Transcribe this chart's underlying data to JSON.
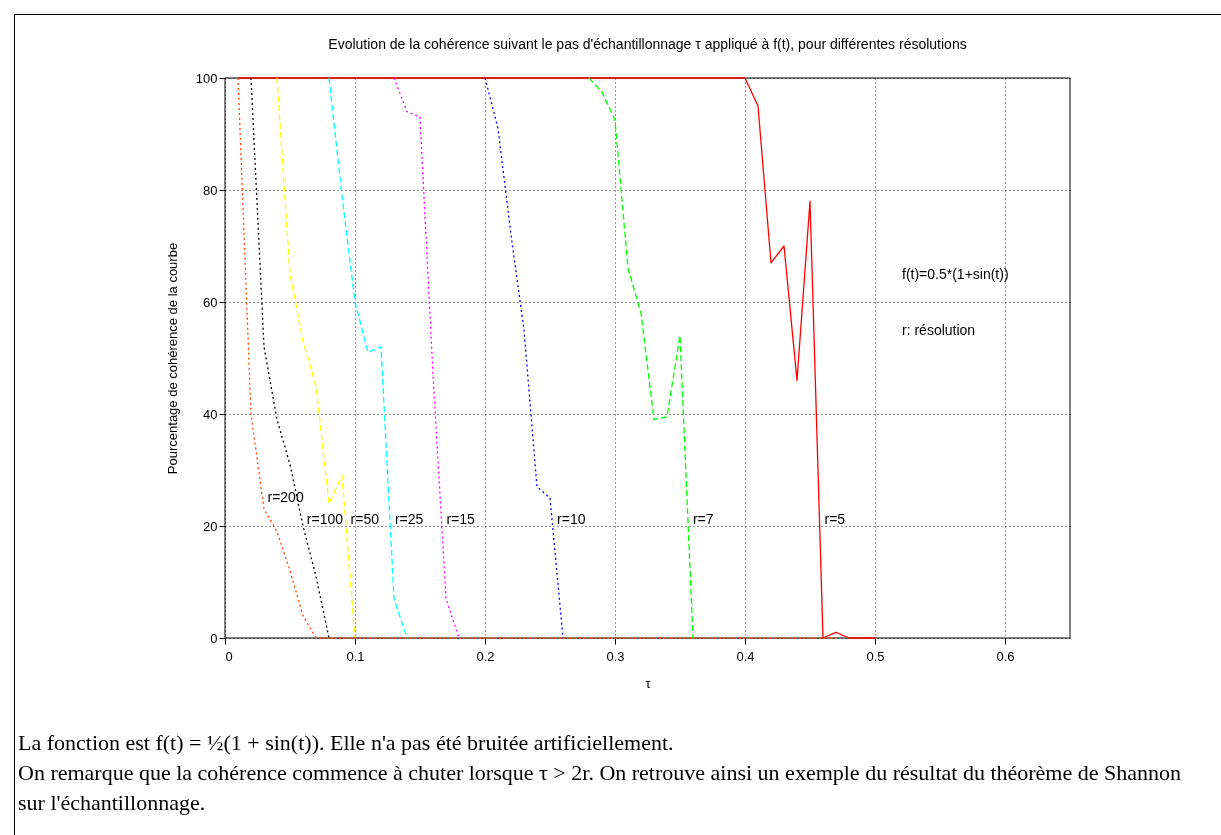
{
  "chart_data": {
    "type": "line",
    "title": "Evolution de la cohérence suivant le pas d'échantillonnage τ appliqué à f(t), pour différentes résolutions",
    "xlabel": "τ",
    "ylabel": "Pourcentage de cohérence de la courbe",
    "x": [
      0.01,
      0.02,
      0.03,
      0.04,
      0.05,
      0.06,
      0.07,
      0.08,
      0.09,
      0.1,
      0.11,
      0.12,
      0.13,
      0.14,
      0.15,
      0.16,
      0.17,
      0.18,
      0.19,
      0.2,
      0.21,
      0.22,
      0.23,
      0.24,
      0.25,
      0.26,
      0.27,
      0.28,
      0.29,
      0.3,
      0.31,
      0.32,
      0.33,
      0.34,
      0.35,
      0.36,
      0.37,
      0.38,
      0.39,
      0.4,
      0.41,
      0.42,
      0.43,
      0.44,
      0.45,
      0.46,
      0.47,
      0.48,
      0.49,
      0.5
    ],
    "series": [
      {
        "name": "r=5",
        "color": "#ff0000",
        "line_style": "solid",
        "values": [
          100,
          100,
          100,
          100,
          100,
          100,
          100,
          100,
          100,
          100,
          100,
          100,
          100,
          100,
          100,
          100,
          100,
          100,
          100,
          100,
          100,
          100,
          100,
          100,
          100,
          100,
          100,
          100,
          100,
          100,
          100,
          100,
          100,
          100,
          100,
          100,
          100,
          100,
          100,
          100,
          95,
          67,
          70,
          46,
          78,
          0,
          1,
          0,
          0,
          0
        ]
      },
      {
        "name": "r=7",
        "color": "#00ff00",
        "line_style": "dashed",
        "values": [
          null,
          null,
          null,
          null,
          null,
          null,
          null,
          null,
          null,
          null,
          null,
          null,
          null,
          null,
          null,
          null,
          null,
          null,
          null,
          null,
          null,
          null,
          null,
          null,
          null,
          null,
          null,
          100,
          97.5,
          92.5,
          66,
          58,
          39,
          39.5,
          54,
          0,
          null,
          null,
          null,
          null,
          null,
          null,
          null,
          null,
          null,
          null,
          null,
          null,
          null,
          null
        ]
      },
      {
        "name": "r=10",
        "color": "#0000ff",
        "line_style": "dotted",
        "values": [
          null,
          null,
          null,
          null,
          null,
          null,
          null,
          null,
          null,
          null,
          null,
          null,
          null,
          null,
          null,
          null,
          null,
          null,
          null,
          100,
          91,
          72,
          55,
          27,
          25,
          0,
          null,
          null,
          null,
          null,
          null,
          null,
          null,
          null,
          null,
          null,
          null,
          null,
          null,
          null,
          null,
          null,
          null,
          null,
          null,
          null,
          null,
          null,
          null,
          null
        ]
      },
      {
        "name": "r=15",
        "color": "#ff00ff",
        "line_style": "dotted",
        "values": [
          null,
          null,
          null,
          null,
          null,
          null,
          null,
          null,
          null,
          null,
          null,
          null,
          100,
          94,
          93,
          47,
          7,
          0,
          null,
          null,
          null,
          null,
          null,
          null,
          null,
          null,
          null,
          null,
          null,
          null,
          null,
          null,
          null,
          null,
          null,
          null,
          null,
          null,
          null,
          null,
          null,
          null,
          null,
          null,
          null,
          null,
          null,
          null,
          null,
          null
        ]
      },
      {
        "name": "r=25",
        "color": "#00ffff",
        "line_style": "dashed",
        "values": [
          null,
          null,
          null,
          null,
          null,
          null,
          null,
          100,
          79,
          60,
          51,
          52,
          7,
          0,
          null,
          null,
          null,
          null,
          null,
          null,
          null,
          null,
          null,
          null,
          null,
          null,
          null,
          null,
          null,
          null,
          null,
          null,
          null,
          null,
          null,
          null,
          null,
          null,
          null,
          null,
          null,
          null,
          null,
          null,
          null,
          null,
          null,
          null,
          null,
          null
        ]
      },
      {
        "name": "r=50",
        "color": "#ffff00",
        "line_style": "dashed",
        "values": [
          null,
          null,
          null,
          100,
          65,
          53,
          45,
          24,
          29,
          0,
          null,
          null,
          null,
          null,
          null,
          null,
          null,
          null,
          null,
          null,
          null,
          null,
          null,
          null,
          null,
          null,
          null,
          null,
          null,
          null,
          null,
          null,
          null,
          null,
          null,
          null,
          null,
          null,
          null,
          null,
          null,
          null,
          null,
          null,
          null,
          null,
          null,
          null,
          null,
          null
        ]
      },
      {
        "name": "r=100",
        "color": "#000000",
        "line_style": "dotted",
        "values": [
          null,
          100,
          52,
          39,
          31,
          20,
          11,
          0,
          null,
          null,
          null,
          null,
          null,
          null,
          null,
          null,
          null,
          null,
          null,
          null,
          null,
          null,
          null,
          null,
          null,
          null,
          null,
          null,
          null,
          null,
          null,
          null,
          null,
          null,
          null,
          null,
          null,
          null,
          null,
          null,
          null,
          null,
          null,
          null,
          null,
          null,
          null,
          null,
          null,
          null
        ]
      },
      {
        "name": "r=200",
        "color": "#ff4500",
        "line_style": "dotted",
        "values": [
          100,
          40,
          23,
          19,
          12,
          4,
          0,
          0,
          0,
          0,
          0,
          0,
          0,
          0,
          0,
          0,
          0,
          0,
          0,
          0,
          0,
          0,
          0,
          0,
          0,
          0,
          0,
          0,
          0,
          0,
          0,
          0,
          0,
          0,
          0,
          0,
          0,
          0,
          0,
          0,
          0,
          0,
          0,
          0,
          0,
          0,
          0,
          null,
          null,
          null
        ]
      }
    ],
    "xlim": [
      0,
      0.65
    ],
    "xticks": [
      0,
      0.1,
      0.2,
      0.3,
      0.4,
      0.5,
      0.6
    ],
    "ylim": [
      0,
      100
    ],
    "yticks": [
      0,
      20,
      40,
      60,
      80,
      100
    ],
    "grid": true,
    "legend": false,
    "annotations": [
      "f(t)=0.5*(1+sin(t))",
      "r: résolution",
      "La fonction est f(t) = ½(1 + sin(t)). Elle n'a pas été bruitée artificiellement.",
      "On remarque que la cohérence commence à chuter lorsque τ > 2r. On retrouve ainsi un exemple du résultat du théorème de Shannon sur l'échantillonnage."
    ]
  }
}
